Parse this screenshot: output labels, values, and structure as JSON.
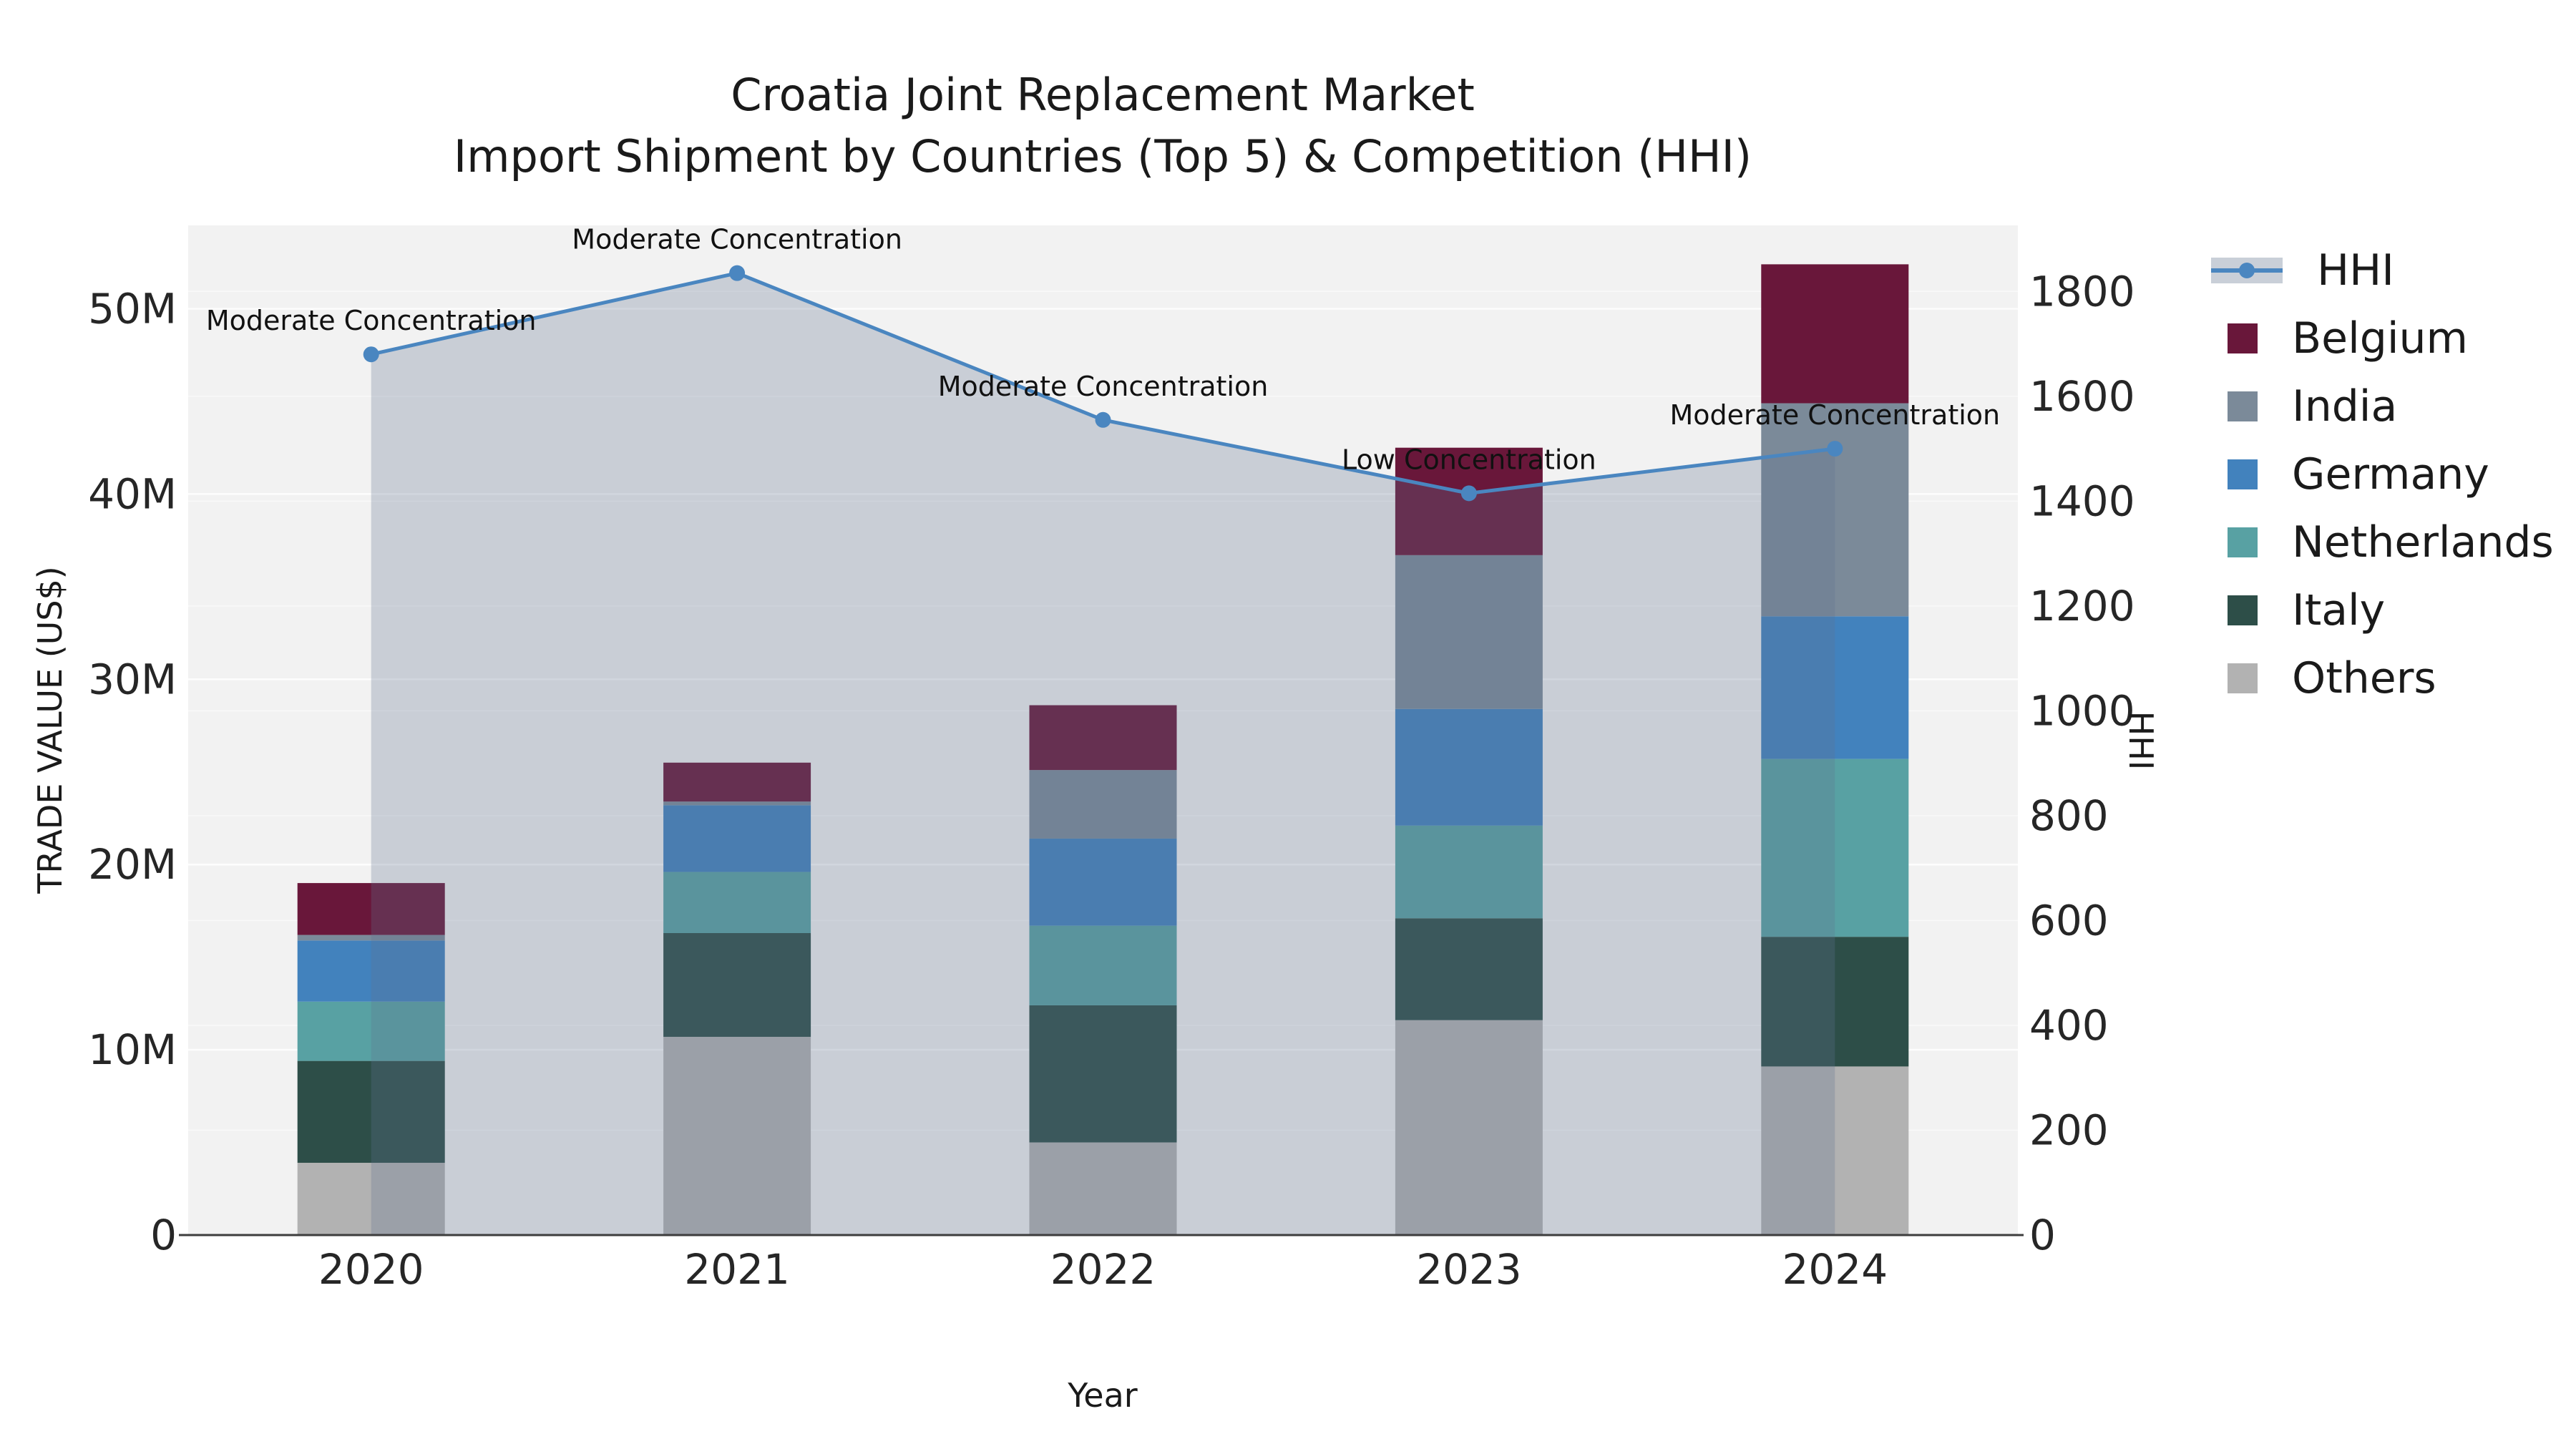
{
  "title": {
    "line1": "Croatia Joint Replacement Market",
    "line2": "Import Shipment by Countries (Top 5) & Competition (HHI)"
  },
  "chart_data": {
    "type": "bar",
    "combo": "stacked-bar-with-line",
    "title": "Croatia Joint Replacement Market\nImport Shipment by Countries (Top 5) & Competition (HHI)",
    "xlabel": "Year",
    "ylabel": "TRADE VALUE (US$)",
    "y2label": "HHI",
    "categories": [
      "2020",
      "2021",
      "2022",
      "2023",
      "2024"
    ],
    "series": [
      {
        "name": "Others",
        "color": "#b2b2b2",
        "values_musd": [
          3.9,
          10.7,
          5.0,
          11.6,
          9.1
        ]
      },
      {
        "name": "Italy",
        "color": "#2d4e48",
        "values_musd": [
          5.5,
          5.6,
          7.4,
          5.5,
          7.0
        ]
      },
      {
        "name": "Netherlands",
        "color": "#58a1a3",
        "values_musd": [
          3.2,
          3.3,
          4.3,
          5.0,
          9.6
        ]
      },
      {
        "name": "Germany",
        "color": "#4282bd",
        "values_musd": [
          3.3,
          3.6,
          4.7,
          6.3,
          7.7
        ]
      },
      {
        "name": "India",
        "color": "#7b8a99",
        "values_musd": [
          0.3,
          0.2,
          3.7,
          8.3,
          11.5
        ]
      },
      {
        "name": "Belgium",
        "color": "#69173a",
        "values_musd": [
          2.8,
          2.1,
          3.5,
          5.8,
          7.5
        ]
      }
    ],
    "bar_totals_musd": [
      19.0,
      25.5,
      28.6,
      42.5,
      52.4
    ],
    "line_series": {
      "name": "HHI",
      "color": "#4a86c0",
      "area_fill": "rgba(98,115,143,0.28)",
      "values": [
        1680,
        1835,
        1555,
        1415,
        1500
      ]
    },
    "annotations": [
      {
        "category": "2020",
        "text": "Moderate Concentration"
      },
      {
        "category": "2021",
        "text": "Moderate Concentration"
      },
      {
        "category": "2022",
        "text": "Moderate Concentration"
      },
      {
        "category": "2023",
        "text": "Low Concentration"
      },
      {
        "category": "2024",
        "text": "Moderate Concentration"
      }
    ],
    "y_ticks": [
      {
        "value": 0,
        "label": "0"
      },
      {
        "value": 10,
        "label": "10M"
      },
      {
        "value": 20,
        "label": "20M"
      },
      {
        "value": 30,
        "label": "30M"
      },
      {
        "value": 40,
        "label": "40M"
      },
      {
        "value": 50,
        "label": "50M"
      }
    ],
    "y2_ticks": [
      {
        "value": 0,
        "label": "0"
      },
      {
        "value": 200,
        "label": "200"
      },
      {
        "value": 400,
        "label": "400"
      },
      {
        "value": 600,
        "label": "600"
      },
      {
        "value": 800,
        "label": "800"
      },
      {
        "value": 1000,
        "label": "1000"
      },
      {
        "value": 1200,
        "label": "1200"
      },
      {
        "value": 1400,
        "label": "1400"
      },
      {
        "value": 1600,
        "label": "1600"
      },
      {
        "value": 1800,
        "label": "1800"
      }
    ],
    "ylim": [
      0,
      54.5
    ],
    "y2lim": [
      0,
      1926
    ],
    "grid": true,
    "legend_position": "right",
    "legend_order": [
      "HHI",
      "Belgium",
      "India",
      "Germany",
      "Netherlands",
      "Italy",
      "Others"
    ],
    "plot_background": "#f2f2f2",
    "grid_color": "#ffffff",
    "axis_line_color": "#3d3d3d",
    "tick_text_color": "#262626",
    "annotation_text_color": "#111111"
  }
}
